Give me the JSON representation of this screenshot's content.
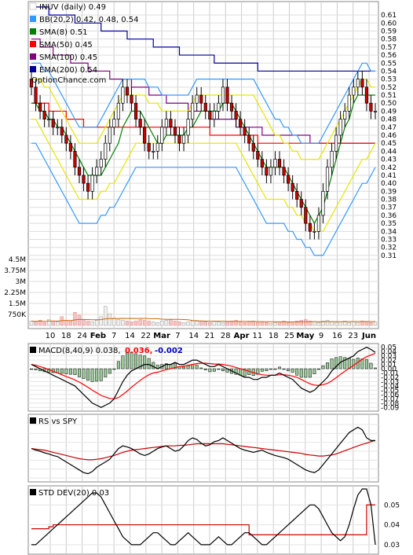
{
  "chart_data": {
    "type": "stock-chart",
    "legend": {
      "title": "INUV (daily) 0.49",
      "items": [
        {
          "label": "BB(20,2) 0.42, 0.48, 0.54",
          "color": "#3399ff"
        },
        {
          "label": "SMA(8) 0.51",
          "color": "#008000"
        },
        {
          "label": "SMA(50) 0.45",
          "color": "#ff0000"
        },
        {
          "label": "SMA(100) 0.45",
          "color": "#800080"
        },
        {
          "label": "EMA(200) 0.54",
          "color": "#000099"
        }
      ],
      "watermark": "OptionChance.com"
    },
    "x_labels": [
      "10",
      "18",
      "24",
      "Feb",
      "7",
      "14",
      "22",
      "Mar",
      "7",
      "14",
      "21",
      "28",
      "Apr",
      "11",
      "18",
      "25",
      "May",
      "9",
      "16",
      "23",
      "Jun"
    ],
    "bold_x_labels": [
      "Feb",
      "Mar",
      "Apr",
      "May",
      "Jun"
    ],
    "price_axis": {
      "ylim": [
        0.305,
        0.615
      ],
      "ticks": [
        "0.61",
        "0.60",
        "0.59",
        "0.58",
        "0.57",
        "0.56",
        "0.55",
        "0.54",
        "0.53",
        "0.52",
        "0.51",
        "0.50",
        "0.49",
        "0.48",
        "0.47",
        "0.46",
        "0.45",
        "0.44",
        "0.43",
        "0.42",
        "0.41",
        "0.40",
        "0.39",
        "0.38",
        "0.37",
        "0.36",
        "0.35",
        "0.34",
        "0.33",
        "0.32",
        "0.31"
      ]
    },
    "volume_axis": {
      "ylim": [
        0,
        4500000
      ],
      "ticks": [
        "4.5M",
        "3.75M",
        "3M",
        "2.25M",
        "1.5M",
        "750K"
      ]
    },
    "close": [
      0.52,
      0.5,
      0.49,
      0.48,
      0.48,
      0.47,
      0.47,
      0.46,
      0.45,
      0.44,
      0.42,
      0.41,
      0.4,
      0.39,
      0.41,
      0.42,
      0.43,
      0.45,
      0.47,
      0.48,
      0.5,
      0.52,
      0.51,
      0.5,
      0.48,
      0.47,
      0.45,
      0.44,
      0.44,
      0.45,
      0.47,
      0.48,
      0.47,
      0.46,
      0.45,
      0.46,
      0.48,
      0.5,
      0.51,
      0.5,
      0.49,
      0.48,
      0.49,
      0.5,
      0.52,
      0.5,
      0.49,
      0.48,
      0.47,
      0.46,
      0.45,
      0.44,
      0.43,
      0.42,
      0.41,
      0.42,
      0.43,
      0.42,
      0.41,
      0.4,
      0.39,
      0.38,
      0.37,
      0.35,
      0.34,
      0.34,
      0.36,
      0.39,
      0.42,
      0.44,
      0.46,
      0.48,
      0.49,
      0.51,
      0.52,
      0.53,
      0.52,
      0.5,
      0.49,
      0.49
    ],
    "sma8": [
      0.5,
      0.5,
      0.49,
      0.49,
      0.48,
      0.48,
      0.47,
      0.47,
      0.46,
      0.45,
      0.44,
      0.43,
      0.42,
      0.41,
      0.41,
      0.41,
      0.41,
      0.42,
      0.43,
      0.44,
      0.45,
      0.47,
      0.48,
      0.49,
      0.49,
      0.49,
      0.48,
      0.47,
      0.46,
      0.45,
      0.45,
      0.46,
      0.46,
      0.46,
      0.46,
      0.46,
      0.47,
      0.47,
      0.48,
      0.49,
      0.49,
      0.49,
      0.49,
      0.49,
      0.5,
      0.5,
      0.5,
      0.49,
      0.48,
      0.47,
      0.46,
      0.45,
      0.44,
      0.43,
      0.42,
      0.42,
      0.42,
      0.42,
      0.42,
      0.41,
      0.4,
      0.39,
      0.38,
      0.37,
      0.36,
      0.35,
      0.36,
      0.37,
      0.39,
      0.41,
      0.43,
      0.45,
      0.47,
      0.48,
      0.5,
      0.51,
      0.51,
      0.51,
      0.51,
      0.51
    ],
    "sma50": [
      0.5,
      0.5,
      0.5,
      0.5,
      0.49,
      0.49,
      0.49,
      0.49,
      0.48,
      0.48,
      0.48,
      0.48,
      0.47,
      0.47,
      0.47,
      0.47,
      0.47,
      0.47,
      0.47,
      0.47,
      0.47,
      0.47,
      0.47,
      0.47,
      0.47,
      0.47,
      0.47,
      0.47,
      0.47,
      0.47,
      0.47,
      0.47,
      0.47,
      0.47,
      0.47,
      0.47,
      0.47,
      0.47,
      0.47,
      0.47,
      0.47,
      0.46,
      0.46,
      0.46,
      0.46,
      0.46,
      0.46,
      0.46,
      0.46,
      0.46,
      0.46,
      0.46,
      0.45,
      0.45,
      0.45,
      0.45,
      0.45,
      0.45,
      0.45,
      0.45,
      0.45,
      0.45,
      0.45,
      0.45,
      0.45,
      0.45,
      0.45,
      0.45,
      0.45,
      0.45,
      0.45,
      0.45,
      0.45,
      0.45,
      0.45,
      0.45,
      0.45,
      0.45,
      0.45,
      0.45
    ],
    "sma100": [
      0.58,
      0.58,
      0.57,
      0.57,
      0.57,
      0.56,
      0.56,
      0.56,
      0.56,
      0.55,
      0.55,
      0.55,
      0.55,
      0.54,
      0.54,
      0.54,
      0.54,
      0.54,
      0.53,
      0.53,
      0.53,
      0.53,
      0.53,
      0.52,
      0.52,
      0.52,
      0.52,
      0.51,
      0.51,
      0.51,
      0.51,
      0.5,
      0.5,
      0.5,
      0.5,
      0.5,
      0.49,
      0.49,
      0.49,
      0.49,
      0.49,
      0.48,
      0.48,
      0.48,
      0.48,
      0.48,
      0.48,
      0.47,
      0.47,
      0.47,
      0.47,
      0.47,
      0.47,
      0.46,
      0.46,
      0.46,
      0.46,
      0.46,
      0.46,
      0.46,
      0.46,
      0.46,
      0.46,
      0.46,
      0.45,
      0.45,
      0.45,
      0.45,
      0.45,
      0.45,
      0.45,
      0.45,
      0.45,
      0.45,
      0.45,
      0.45,
      0.45,
      0.45,
      0.45,
      0.45
    ],
    "ema200": [
      0.62,
      0.62,
      0.62,
      0.62,
      0.61,
      0.61,
      0.61,
      0.61,
      0.61,
      0.61,
      0.6,
      0.6,
      0.6,
      0.6,
      0.6,
      0.6,
      0.59,
      0.59,
      0.59,
      0.59,
      0.59,
      0.59,
      0.58,
      0.58,
      0.58,
      0.58,
      0.58,
      0.58,
      0.57,
      0.57,
      0.57,
      0.57,
      0.57,
      0.57,
      0.56,
      0.56,
      0.56,
      0.56,
      0.56,
      0.56,
      0.56,
      0.56,
      0.55,
      0.55,
      0.55,
      0.55,
      0.55,
      0.55,
      0.55,
      0.55,
      0.55,
      0.55,
      0.54,
      0.54,
      0.54,
      0.54,
      0.54,
      0.54,
      0.54,
      0.54,
      0.54,
      0.54,
      0.54,
      0.54,
      0.54,
      0.54,
      0.54,
      0.54,
      0.54,
      0.54,
      0.54,
      0.54,
      0.54,
      0.54,
      0.54,
      0.54,
      0.54,
      0.54,
      0.54,
      0.54
    ],
    "bb_upper": [
      0.55,
      0.55,
      0.55,
      0.54,
      0.54,
      0.53,
      0.52,
      0.51,
      0.5,
      0.49,
      0.48,
      0.47,
      0.47,
      0.47,
      0.47,
      0.47,
      0.48,
      0.49,
      0.5,
      0.51,
      0.52,
      0.53,
      0.53,
      0.53,
      0.53,
      0.53,
      0.53,
      0.52,
      0.52,
      0.52,
      0.51,
      0.51,
      0.51,
      0.51,
      0.51,
      0.51,
      0.51,
      0.52,
      0.53,
      0.53,
      0.53,
      0.53,
      0.53,
      0.53,
      0.53,
      0.53,
      0.53,
      0.53,
      0.53,
      0.53,
      0.53,
      0.53,
      0.52,
      0.51,
      0.5,
      0.49,
      0.48,
      0.48,
      0.47,
      0.47,
      0.46,
      0.46,
      0.45,
      0.45,
      0.45,
      0.45,
      0.45,
      0.46,
      0.47,
      0.48,
      0.49,
      0.5,
      0.51,
      0.52,
      0.53,
      0.54,
      0.55,
      0.55,
      0.54,
      0.54
    ],
    "bb_lower": [
      0.45,
      0.45,
      0.44,
      0.43,
      0.42,
      0.41,
      0.4,
      0.39,
      0.38,
      0.37,
      0.36,
      0.35,
      0.35,
      0.35,
      0.35,
      0.35,
      0.36,
      0.36,
      0.37,
      0.37,
      0.38,
      0.39,
      0.4,
      0.41,
      0.42,
      0.42,
      0.42,
      0.42,
      0.42,
      0.42,
      0.42,
      0.42,
      0.42,
      0.42,
      0.42,
      0.42,
      0.42,
      0.42,
      0.42,
      0.42,
      0.42,
      0.42,
      0.42,
      0.42,
      0.42,
      0.42,
      0.42,
      0.42,
      0.41,
      0.4,
      0.39,
      0.38,
      0.37,
      0.36,
      0.35,
      0.35,
      0.35,
      0.35,
      0.35,
      0.34,
      0.34,
      0.33,
      0.33,
      0.32,
      0.32,
      0.31,
      0.31,
      0.31,
      0.32,
      0.33,
      0.34,
      0.35,
      0.36,
      0.37,
      0.38,
      0.39,
      0.4,
      0.4,
      0.41,
      0.42
    ],
    "volume": [
      300000,
      250000,
      350000,
      200000,
      400000,
      300000,
      250000,
      600000,
      350000,
      300000,
      900000,
      700000,
      400000,
      300000,
      250000,
      350000,
      600000,
      1300000,
      800000,
      500000,
      400000,
      350000,
      300000,
      250000,
      300000,
      400000,
      350000,
      300000,
      250000,
      200000,
      300000,
      350000,
      400000,
      300000,
      250000,
      200000,
      250000,
      300000,
      350000,
      300000,
      250000,
      200000,
      300000,
      250000,
      200000,
      250000,
      300000,
      350000,
      250000,
      200000,
      250000,
      300000,
      200000,
      250000,
      200000,
      150000,
      200000,
      250000,
      300000,
      200000,
      250000,
      300000,
      350000,
      400000,
      300000,
      250000,
      200000,
      300000,
      350000,
      250000,
      200000,
      250000,
      300000,
      200000,
      250000,
      200000,
      300000,
      250000,
      200000,
      250000
    ],
    "macd": {
      "label": "MACD(8,40,9) 0.038,",
      "val2": "0.036,",
      "val3": "-0.002",
      "ticks": [
        "0.05",
        "0.04",
        "0.03",
        "0.02",
        "0.01",
        "0.00",
        "-0.01",
        "-0.02",
        "-0.03",
        "-0.04",
        "-0.05",
        "-0.06",
        "-0.07",
        "-0.08",
        "-0.09"
      ],
      "ylim": [
        -0.095,
        0.055
      ],
      "macd": [
        0.01,
        0.005,
        0,
        -0.005,
        -0.01,
        -0.015,
        -0.02,
        -0.025,
        -0.03,
        -0.035,
        -0.04,
        -0.05,
        -0.06,
        -0.07,
        -0.08,
        -0.085,
        -0.09,
        -0.085,
        -0.08,
        -0.07,
        -0.05,
        -0.03,
        -0.015,
        -0.005,
        0,
        0.005,
        0.01,
        0.01,
        0.005,
        0,
        0.005,
        0.01,
        0.01,
        0.015,
        0.01,
        0.01,
        0.015,
        0.02,
        0.02,
        0.015,
        0.01,
        0.005,
        0.005,
        0.01,
        0.005,
        0,
        -0.005,
        -0.01,
        -0.015,
        -0.02,
        -0.02,
        -0.025,
        -0.025,
        -0.02,
        -0.02,
        -0.015,
        -0.015,
        -0.01,
        -0.015,
        -0.02,
        -0.025,
        -0.035,
        -0.045,
        -0.05,
        -0.055,
        -0.05,
        -0.04,
        -0.03,
        -0.02,
        -0.005,
        0.005,
        0.015,
        0.02,
        0.025,
        0.03,
        0.04,
        0.045,
        0.05,
        0.045,
        0.038
      ],
      "signal": [
        0.01,
        0.008,
        0.005,
        0.002,
        -0.002,
        -0.006,
        -0.01,
        -0.014,
        -0.018,
        -0.022,
        -0.026,
        -0.031,
        -0.037,
        -0.043,
        -0.05,
        -0.056,
        -0.062,
        -0.066,
        -0.069,
        -0.07,
        -0.067,
        -0.06,
        -0.052,
        -0.043,
        -0.035,
        -0.027,
        -0.02,
        -0.014,
        -0.01,
        -0.008,
        -0.005,
        -0.002,
        0,
        0.003,
        0.005,
        0.006,
        0.008,
        0.01,
        0.012,
        0.013,
        0.013,
        0.012,
        0.011,
        0.011,
        0.01,
        0.008,
        0.006,
        0.003,
        0,
        -0.003,
        -0.006,
        -0.009,
        -0.012,
        -0.014,
        -0.015,
        -0.015,
        -0.015,
        -0.014,
        -0.014,
        -0.015,
        -0.017,
        -0.02,
        -0.025,
        -0.03,
        -0.035,
        -0.038,
        -0.039,
        -0.037,
        -0.034,
        -0.028,
        -0.021,
        -0.013,
        -0.006,
        0.001,
        0.008,
        0.015,
        0.022,
        0.028,
        0.032,
        0.036
      ]
    },
    "rs_label": "RS vs SPY",
    "rs": {
      "line": [
        0.55,
        0.52,
        0.5,
        0.47,
        0.45,
        0.42,
        0.4,
        0.35,
        0.3,
        0.25,
        0.2,
        0.15,
        0.1,
        0.08,
        0.12,
        0.2,
        0.25,
        0.3,
        0.35,
        0.45,
        0.55,
        0.6,
        0.58,
        0.55,
        0.5,
        0.45,
        0.42,
        0.45,
        0.5,
        0.55,
        0.58,
        0.6,
        0.55,
        0.5,
        0.52,
        0.6,
        0.7,
        0.75,
        0.72,
        0.65,
        0.6,
        0.62,
        0.68,
        0.7,
        0.75,
        0.7,
        0.65,
        0.6,
        0.55,
        0.52,
        0.5,
        0.48,
        0.5,
        0.52,
        0.48,
        0.45,
        0.42,
        0.4,
        0.38,
        0.35,
        0.3,
        0.25,
        0.2,
        0.15,
        0.12,
        0.1,
        0.15,
        0.25,
        0.35,
        0.45,
        0.55,
        0.65,
        0.75,
        0.85,
        0.9,
        0.95,
        0.9,
        0.75,
        0.7,
        0.7
      ],
      "avg": [
        0.55,
        0.54,
        0.53,
        0.52,
        0.5,
        0.48,
        0.46,
        0.44,
        0.42,
        0.4,
        0.38,
        0.36,
        0.35,
        0.34,
        0.34,
        0.35,
        0.36,
        0.38,
        0.4,
        0.42,
        0.45,
        0.48,
        0.5,
        0.52,
        0.53,
        0.54,
        0.55,
        0.56,
        0.57,
        0.58,
        0.59,
        0.6,
        0.6,
        0.6,
        0.61,
        0.61,
        0.62,
        0.63,
        0.64,
        0.64,
        0.64,
        0.64,
        0.64,
        0.64,
        0.64,
        0.63,
        0.62,
        0.61,
        0.6,
        0.59,
        0.58,
        0.57,
        0.56,
        0.55,
        0.54,
        0.53,
        0.52,
        0.51,
        0.5,
        0.49,
        0.48,
        0.47,
        0.46,
        0.44,
        0.43,
        0.42,
        0.41,
        0.41,
        0.42,
        0.43,
        0.45,
        0.48,
        0.51,
        0.54,
        0.57,
        0.6,
        0.63,
        0.65,
        0.68,
        0.7
      ]
    },
    "std": {
      "label": "STD DEV(20) 0.03",
      "ticks": [
        "0.05",
        "0.04",
        "0.03"
      ],
      "ylim": [
        0.026,
        0.058
      ],
      "line": [
        0.03,
        0.03,
        0.032,
        0.034,
        0.036,
        0.038,
        0.04,
        0.042,
        0.044,
        0.046,
        0.048,
        0.05,
        0.052,
        0.054,
        0.056,
        0.056,
        0.054,
        0.05,
        0.046,
        0.042,
        0.038,
        0.034,
        0.032,
        0.03,
        0.03,
        0.03,
        0.032,
        0.034,
        0.036,
        0.036,
        0.034,
        0.032,
        0.03,
        0.03,
        0.032,
        0.034,
        0.036,
        0.034,
        0.032,
        0.03,
        0.03,
        0.03,
        0.032,
        0.034,
        0.032,
        0.03,
        0.03,
        0.032,
        0.034,
        0.036,
        0.036,
        0.034,
        0.032,
        0.03,
        0.03,
        0.032,
        0.034,
        0.036,
        0.038,
        0.04,
        0.042,
        0.044,
        0.046,
        0.048,
        0.05,
        0.05,
        0.048,
        0.044,
        0.04,
        0.036,
        0.034,
        0.032,
        0.034,
        0.04,
        0.048,
        0.055,
        0.058,
        0.058,
        0.05,
        0.03
      ],
      "avg": [
        0.038,
        0.038,
        0.038,
        0.038,
        0.039,
        0.04,
        0.04,
        0.04,
        0.04,
        0.04,
        0.04,
        0.04,
        0.04,
        0.04,
        0.04,
        0.04,
        0.04,
        0.04,
        0.04,
        0.04,
        0.04,
        0.04,
        0.04,
        0.04,
        0.04,
        0.04,
        0.04,
        0.04,
        0.04,
        0.04,
        0.04,
        0.04,
        0.04,
        0.04,
        0.04,
        0.04,
        0.04,
        0.04,
        0.04,
        0.04,
        0.04,
        0.04,
        0.04,
        0.04,
        0.04,
        0.04,
        0.04,
        0.04,
        0.04,
        0.04,
        0.035,
        0.035,
        0.035,
        0.035,
        0.035,
        0.035,
        0.035,
        0.035,
        0.035,
        0.035,
        0.035,
        0.035,
        0.035,
        0.035,
        0.035,
        0.035,
        0.035,
        0.035,
        0.035,
        0.035,
        0.035,
        0.035,
        0.035,
        0.035,
        0.035,
        0.035,
        0.035,
        0.05,
        0.05,
        0.05
      ]
    }
  }
}
